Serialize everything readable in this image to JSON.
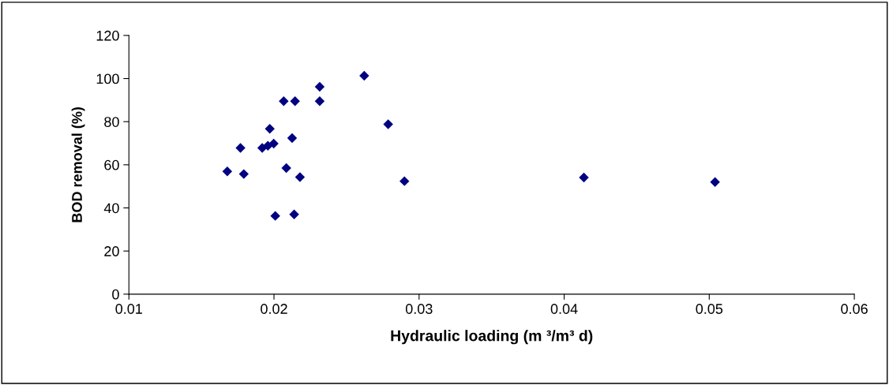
{
  "chart_data": {
    "type": "scatter",
    "xlabel": "Hydraulic loading (m ³/m³ d)",
    "ylabel": "BOD removal (%)",
    "x": [
      0.01678,
      0.01769,
      0.01792,
      0.01919,
      0.01958,
      0.01998,
      0.01971,
      0.02009,
      0.02067,
      0.02145,
      0.02085,
      0.02125,
      0.02139,
      0.02179,
      0.02315,
      0.02315,
      0.02622,
      0.02787,
      0.02899,
      0.04136,
      0.0504
    ],
    "series": [
      {
        "color": "#000080",
        "values": [
          56.9,
          67.8,
          55.7,
          67.8,
          68.8,
          69.8,
          76.7,
          36.3,
          89.5,
          89.5,
          58.5,
          72.4,
          37.0,
          54.3,
          96.2,
          89.5,
          101.3,
          78.8,
          52.4,
          54.1,
          52.0
        ]
      }
    ],
    "xlim": [
      0.01,
      0.06
    ],
    "xticks": [
      0.01,
      0.02,
      0.03,
      0.04,
      0.05,
      0.06
    ],
    "ylim": [
      0,
      120
    ],
    "yticks": [
      0,
      20,
      40,
      60,
      80,
      100,
      120
    ],
    "marker": "diamond",
    "grid": false,
    "legend": false
  }
}
